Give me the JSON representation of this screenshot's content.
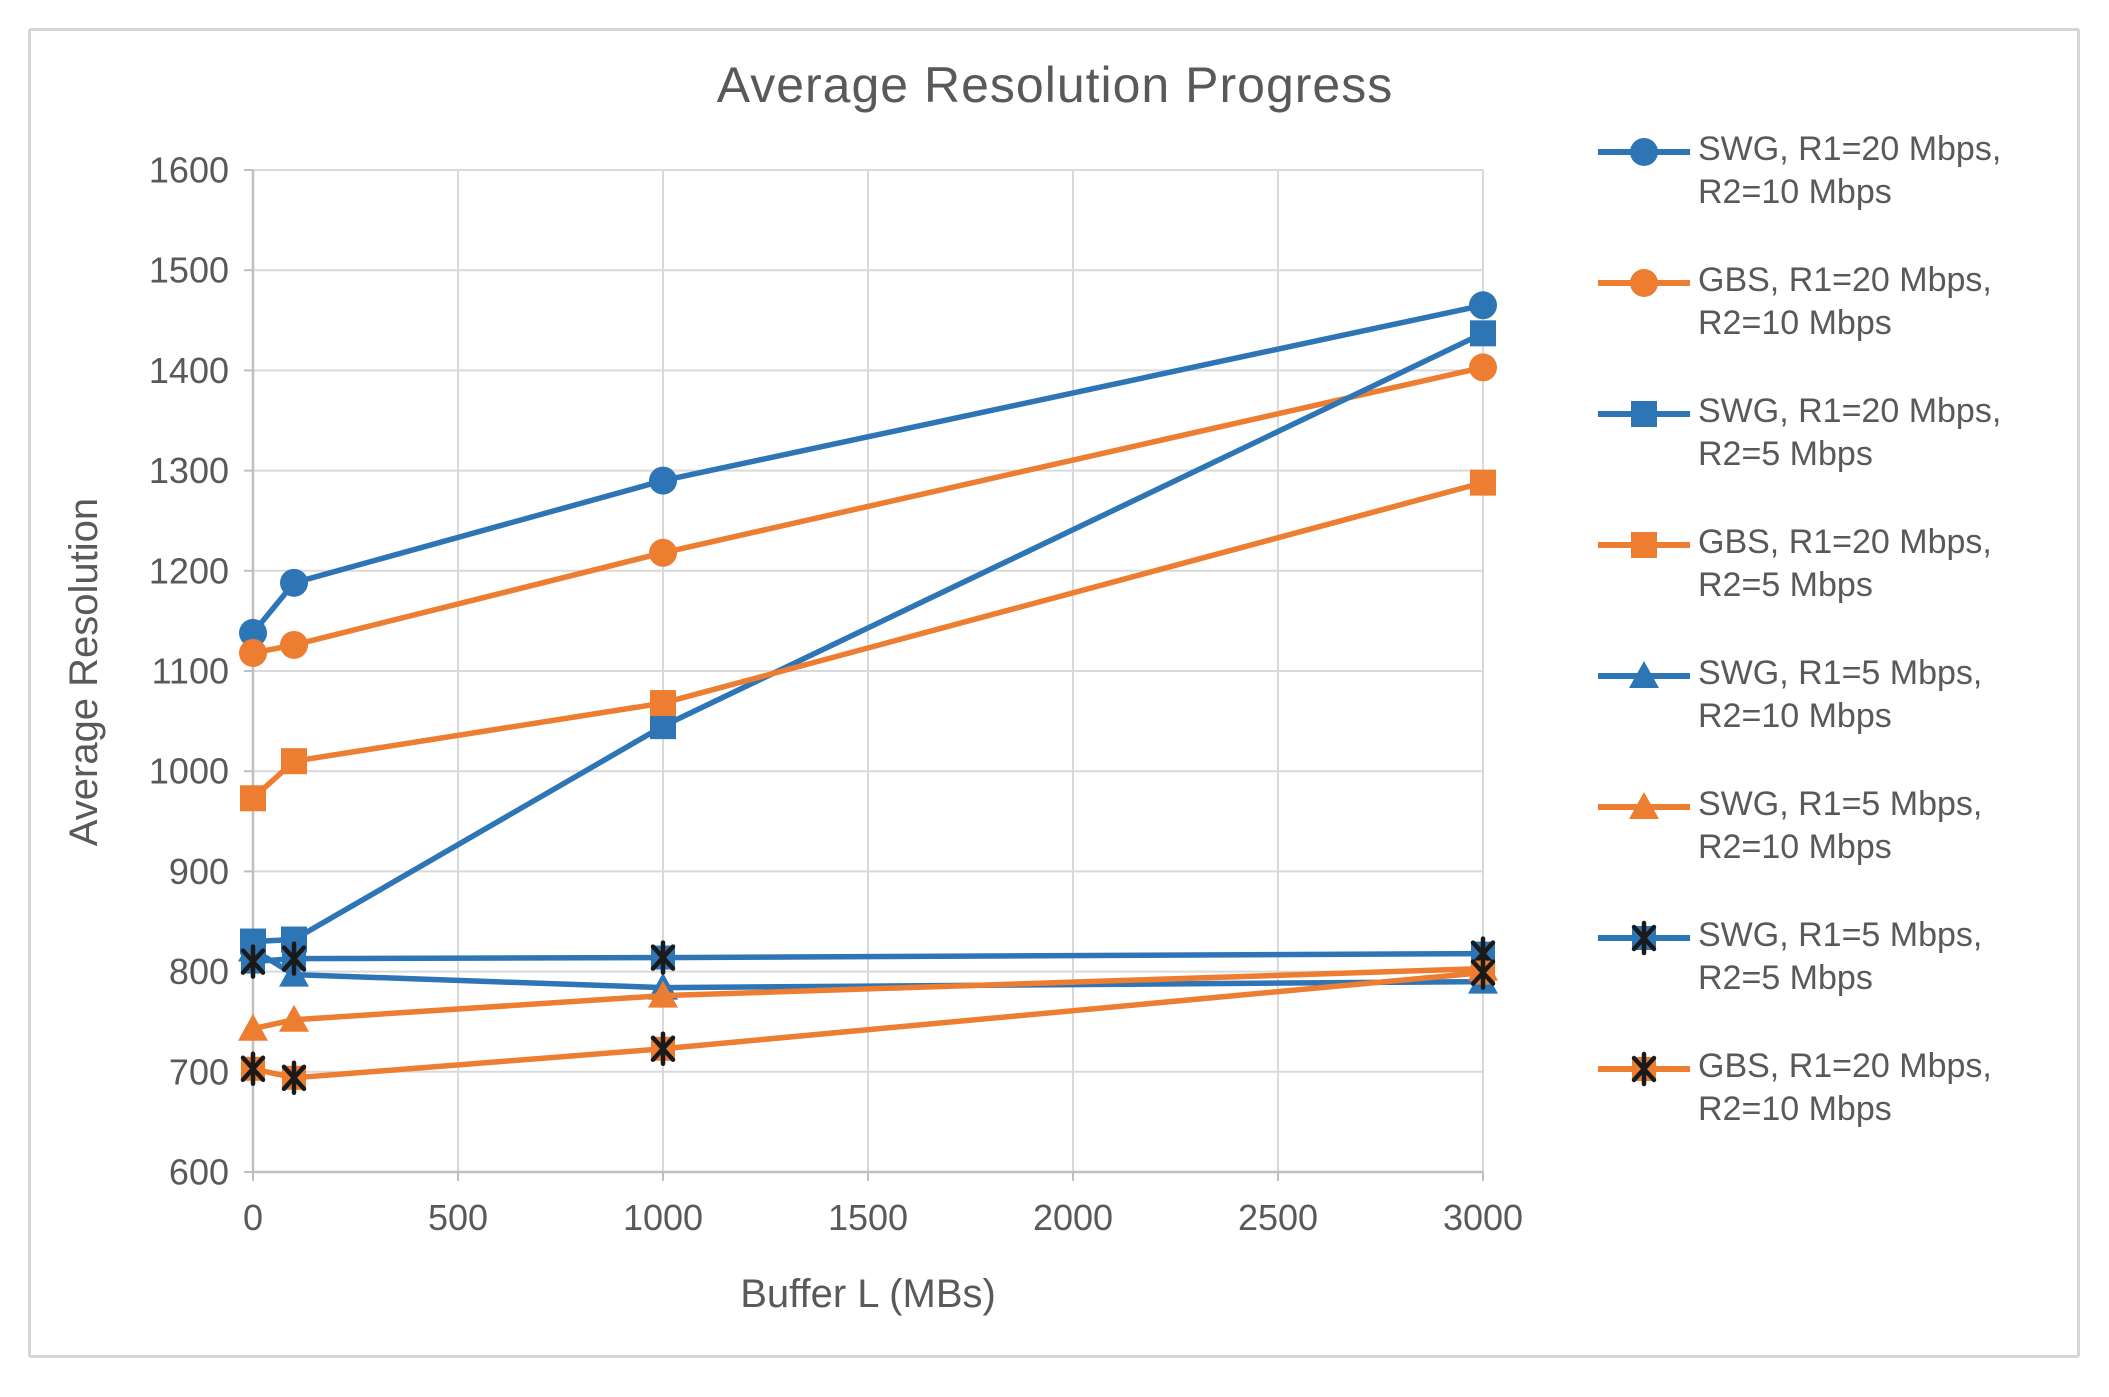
{
  "chart_data": {
    "type": "line",
    "title": "Average Resolution Progress",
    "xlabel": "Buffer L (MBs)",
    "ylabel": "Average Resolution",
    "x": [
      0,
      100,
      1000,
      3000
    ],
    "xlim": [
      0,
      3000
    ],
    "ylim": [
      600,
      1600
    ],
    "x_ticks": [
      0,
      500,
      1000,
      1500,
      2000,
      2500,
      3000
    ],
    "y_ticks": [
      600,
      700,
      800,
      900,
      1000,
      1100,
      1200,
      1300,
      1400,
      1500,
      1600
    ],
    "grid": true,
    "legend_position": "right",
    "colors": {
      "blue": "#2E75B6",
      "orange": "#ED7D31",
      "marker_black": "#1a1a1a",
      "text_gray": "#595959",
      "gridline_gray": "#d9d9d9",
      "axisline_gray": "#bfbfbf"
    },
    "series": [
      {
        "name": "SWG, R1=20 Mbps, R2=10 Mbps",
        "legend_lines": [
          "SWG, R1=20 Mbps,",
          "R2=10 Mbps"
        ],
        "color": "#2E75B6",
        "marker": "circle",
        "values": [
          1138,
          1188,
          1290,
          1465
        ]
      },
      {
        "name": "GBS, R1=20 Mbps, R2=10 Mbps",
        "legend_lines": [
          "GBS, R1=20 Mbps,",
          "R2=10 Mbps"
        ],
        "color": "#ED7D31",
        "marker": "circle",
        "values": [
          1118,
          1126,
          1218,
          1403
        ]
      },
      {
        "name": "SWG, R1=20 Mbps, R2=5 Mbps",
        "legend_lines": [
          "SWG, R1=20 Mbps,",
          "R2=5 Mbps"
        ],
        "color": "#2E75B6",
        "marker": "square",
        "values": [
          830,
          832,
          1045,
          1437
        ]
      },
      {
        "name": "GBS, R1=20 Mbps, R2=5 Mbps",
        "legend_lines": [
          "GBS, R1=20 Mbps,",
          "R2=5 Mbps"
        ],
        "color": "#ED7D31",
        "marker": "square",
        "values": [
          973,
          1010,
          1068,
          1288
        ]
      },
      {
        "name": "SWG, R1=5 Mbps, R2=10 Mbps",
        "legend_lines": [
          "SWG, R1=5 Mbps,",
          "R2=10 Mbps"
        ],
        "color": "#2E75B6",
        "marker": "triangle",
        "values": [
          822,
          797,
          784,
          790
        ]
      },
      {
        "name": "SWG, R1=5 Mbps, R2=10 Mbps",
        "legend_lines": [
          "SWG, R1=5 Mbps,",
          "R2=10 Mbps"
        ],
        "color": "#ED7D31",
        "marker": "triangle",
        "values": [
          743,
          752,
          776,
          803
        ]
      },
      {
        "name": "SWG, R1=5 Mbps, R2=5 Mbps",
        "legend_lines": [
          "SWG, R1=5 Mbps,",
          "R2=5 Mbps"
        ],
        "color": "#2E75B6",
        "marker": "asterisk",
        "values": [
          810,
          813,
          814,
          818
        ]
      },
      {
        "name": "GBS, R1=20 Mbps, R2=10 Mbps",
        "legend_lines": [
          "GBS, R1=20 Mbps,",
          "R2=10 Mbps"
        ],
        "color": "#ED7D31",
        "marker": "asterisk",
        "values": [
          703,
          694,
          723,
          799
        ]
      }
    ]
  }
}
